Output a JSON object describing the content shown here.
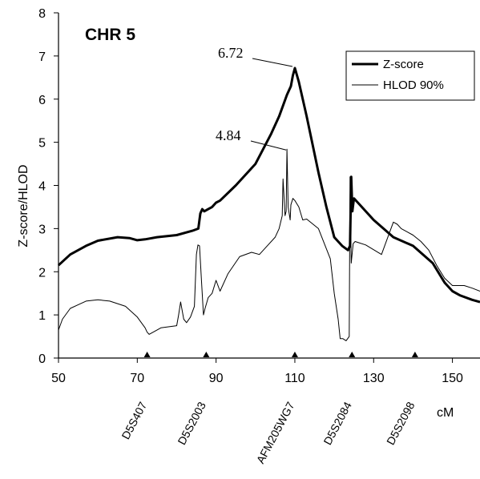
{
  "chart_data": {
    "type": "line",
    "title": "CHR 5",
    "ylabel": "Z-score/HLOD",
    "xunit": "cM",
    "xlim": [
      50,
      157
    ],
    "ylim": [
      0,
      8
    ],
    "x_ticks": [
      50,
      70,
      90,
      110,
      130,
      150
    ],
    "y_ticks": [
      0,
      1,
      2,
      3,
      4,
      5,
      6,
      7,
      8
    ],
    "grid": false,
    "legend_position": "top-right",
    "series": [
      {
        "name": "Z-score",
        "style": "thick",
        "x": [
          50,
          53,
          57,
          60,
          65,
          68,
          70,
          72,
          75,
          80,
          84,
          85.5,
          86,
          86.5,
          87,
          88,
          89,
          90,
          91,
          95,
          100,
          104,
          106,
          108,
          109,
          109.5,
          110,
          111,
          113,
          116,
          118,
          120,
          122,
          123.5,
          124,
          124.3,
          124.6,
          125,
          126,
          130,
          135,
          140,
          145,
          148,
          150,
          152,
          155,
          157
        ],
        "y": [
          2.15,
          2.4,
          2.6,
          2.72,
          2.8,
          2.78,
          2.73,
          2.75,
          2.8,
          2.85,
          2.95,
          3.0,
          3.35,
          3.45,
          3.4,
          3.45,
          3.5,
          3.6,
          3.65,
          4.0,
          4.5,
          5.2,
          5.6,
          6.1,
          6.3,
          6.55,
          6.72,
          6.4,
          5.6,
          4.3,
          3.5,
          2.8,
          2.6,
          2.5,
          2.6,
          4.2,
          3.4,
          3.7,
          3.6,
          3.2,
          2.8,
          2.6,
          2.2,
          1.75,
          1.55,
          1.45,
          1.35,
          1.3
        ]
      },
      {
        "name": "HLOD 90%",
        "style": "thin",
        "x": [
          50,
          51,
          53,
          57,
          60,
          63,
          67,
          70,
          72,
          72.5,
          73,
          76,
          80,
          80.5,
          81,
          81.8,
          82.5,
          83.5,
          84.5,
          85,
          85.4,
          85.8,
          86.3,
          86.8,
          87.2,
          88,
          89,
          90,
          91,
          93,
          96,
          99,
          101,
          103,
          105,
          106,
          106.8,
          107,
          107.5,
          107.8,
          108,
          108.3,
          108.8,
          109,
          109.5,
          110,
          111,
          112,
          113,
          116,
          119,
          120,
          121,
          121.5,
          122.2,
          123,
          123.8,
          124,
          124.3,
          124.8,
          125.3,
          126,
          128,
          132,
          134,
          135,
          136,
          137,
          140,
          142,
          144,
          146,
          148,
          150,
          153,
          155,
          157
        ],
        "y": [
          0.65,
          0.9,
          1.15,
          1.32,
          1.35,
          1.32,
          1.2,
          0.95,
          0.7,
          0.6,
          0.55,
          0.7,
          0.75,
          1.0,
          1.3,
          0.9,
          0.82,
          0.95,
          1.2,
          2.4,
          2.62,
          2.6,
          1.8,
          1.0,
          1.15,
          1.4,
          1.5,
          1.8,
          1.55,
          1.95,
          2.35,
          2.45,
          2.4,
          2.6,
          2.8,
          3.0,
          3.3,
          4.15,
          3.3,
          3.4,
          4.84,
          3.5,
          3.2,
          3.55,
          3.7,
          3.65,
          3.5,
          3.2,
          3.22,
          3.0,
          2.3,
          1.5,
          0.9,
          0.45,
          0.45,
          0.4,
          0.5,
          4.2,
          2.2,
          2.65,
          2.7,
          2.68,
          2.62,
          2.4,
          2.9,
          3.15,
          3.1,
          3.0,
          2.85,
          2.7,
          2.5,
          2.15,
          1.85,
          1.68,
          1.68,
          1.62,
          1.55
        ]
      }
    ],
    "annotations": [
      {
        "text": "6.72",
        "x": 110,
        "y": 6.72
      },
      {
        "text": "4.84",
        "x": 108,
        "y": 4.84
      }
    ],
    "markers": [
      {
        "name": "D5S407",
        "x": 72.5
      },
      {
        "name": "D5S2003",
        "x": 87.5
      },
      {
        "name": "AFM205WG7",
        "x": 110
      },
      {
        "name": "D5S2084",
        "x": 124.5
      },
      {
        "name": "D5S2098",
        "x": 140.5
      }
    ]
  }
}
